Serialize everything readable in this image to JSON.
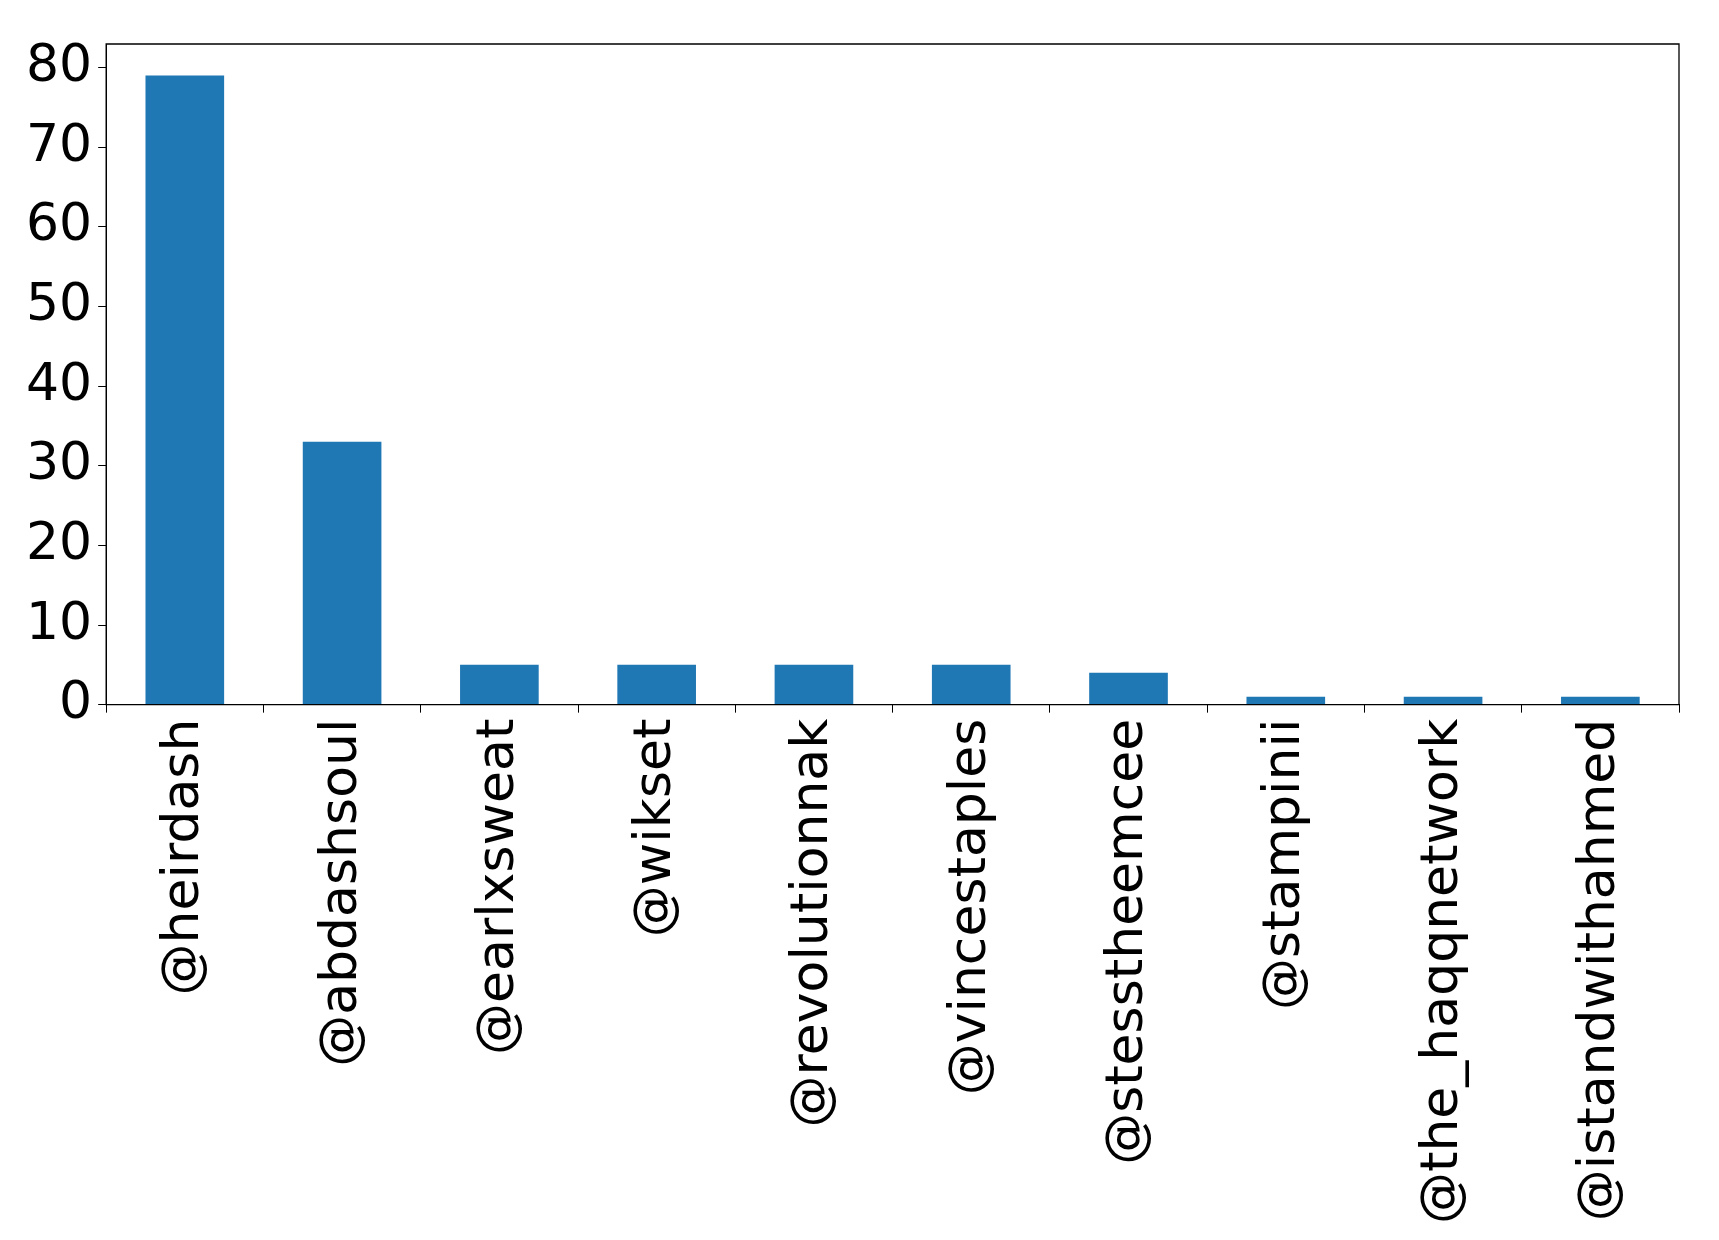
{
  "chart_data": {
    "type": "bar",
    "categories": [
      "@heirdash",
      "@abdashsoul",
      "@earlxsweat",
      "@wikset",
      "@revolutionnak",
      "@vincestaples",
      "@stesstheemcee",
      "@stampinii",
      "@the_haqqnetwork",
      "@istandwithahmed"
    ],
    "values": [
      79,
      33,
      5,
      5,
      5,
      5,
      4,
      1,
      1,
      1
    ],
    "color": "#1f77b4",
    "ylim": [
      0,
      82.95
    ],
    "yticks": [
      0,
      10,
      20,
      30,
      40,
      50,
      60,
      70,
      80
    ],
    "grid": false,
    "legend": false
  }
}
